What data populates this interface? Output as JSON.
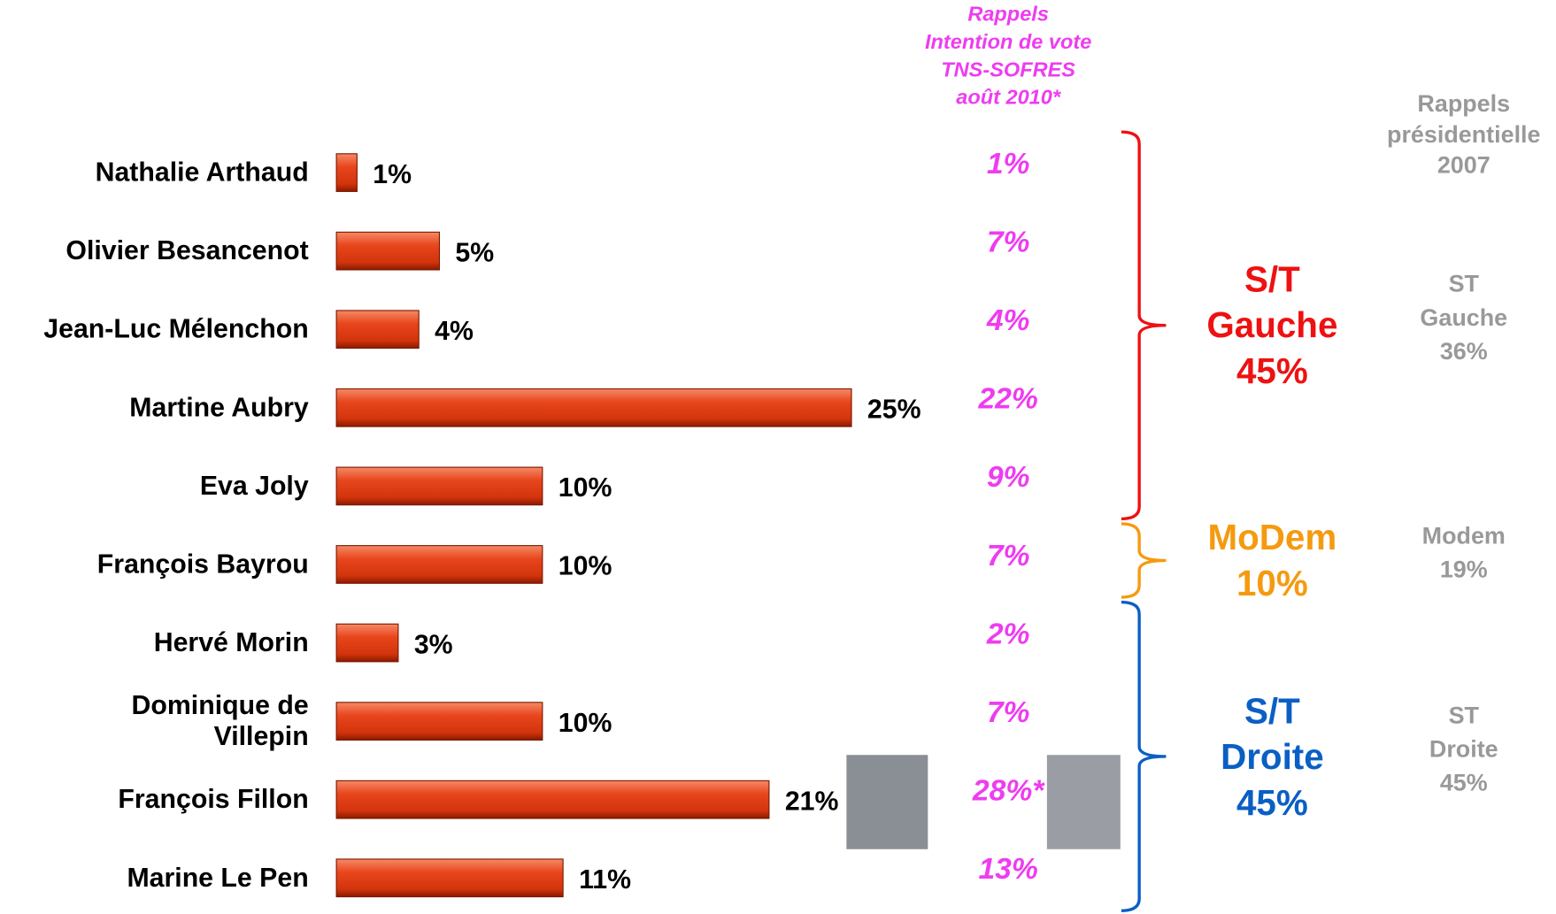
{
  "chart_data": {
    "type": "bar",
    "categories": [
      "Nathalie Arthaud",
      "Olivier Besancenot",
      "Jean-Luc Mélenchon",
      "Martine Aubry",
      "Eva Joly",
      "François Bayrou",
      "Hervé Morin",
      "Dominique de\nVillepin",
      "François Fillon",
      "Marine Le Pen"
    ],
    "values": [
      1,
      5,
      4,
      25,
      10,
      10,
      3,
      10,
      21,
      11
    ],
    "value_labels": [
      "1%",
      "5%",
      "4%",
      "25%",
      "10%",
      "10%",
      "3%",
      "10%",
      "21%",
      "11%"
    ],
    "color": "#e0401a",
    "recall": {
      "title": "Rappels\nIntention de vote\nTNS-SOFRES\naoût 2010*",
      "color": "#ee3cf0",
      "labels": [
        "1%",
        "7%",
        "4%",
        "22%",
        "9%",
        "7%",
        "2%",
        "7%",
        "28%*",
        "13%"
      ]
    },
    "groups": [
      {
        "name": "S/T\nGauche",
        "total": "45%",
        "color": "#ee1111",
        "rows": [
          0,
          4
        ],
        "reference": "ST Gauche\n36%"
      },
      {
        "name": "MoDem",
        "total": "10%",
        "color": "#f59a10",
        "rows": [
          5,
          5
        ],
        "reference": "Modem\n19%"
      },
      {
        "name": "S/T\nDroite",
        "total": "45%",
        "color": "#0a5fc4",
        "rows": [
          6,
          9
        ],
        "reference": "ST Droite\n45%"
      }
    ],
    "reference_title": "Rappels\nprésidentielle\n2007",
    "reference_color": "#999999"
  }
}
